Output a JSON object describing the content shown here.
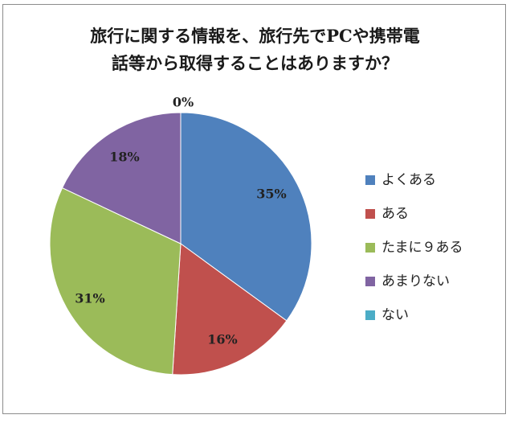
{
  "chart_data": {
    "type": "pie",
    "title_lines": [
      "旅行に関する情報を、旅行先でPCや携帯電",
      "話等から取得することはありますか？"
    ],
    "categories": [
      "よくある",
      "ある",
      "たまにある",
      "あまりない",
      "ない"
    ],
    "values": [
      35,
      16,
      31,
      18,
      0
    ],
    "value_labels": [
      "35%",
      "16%",
      "31%",
      "18%",
      "0%"
    ],
    "colors": [
      "#4F81BD",
      "#C0504D",
      "#9BBB59",
      "#8064A2",
      "#4BACC6"
    ],
    "legend_labels": [
      "よくある",
      "ある",
      "たまに９ある",
      "あまりない",
      "ない"
    ],
    "legend_position": "right",
    "start_angle": "top, clockwise"
  }
}
